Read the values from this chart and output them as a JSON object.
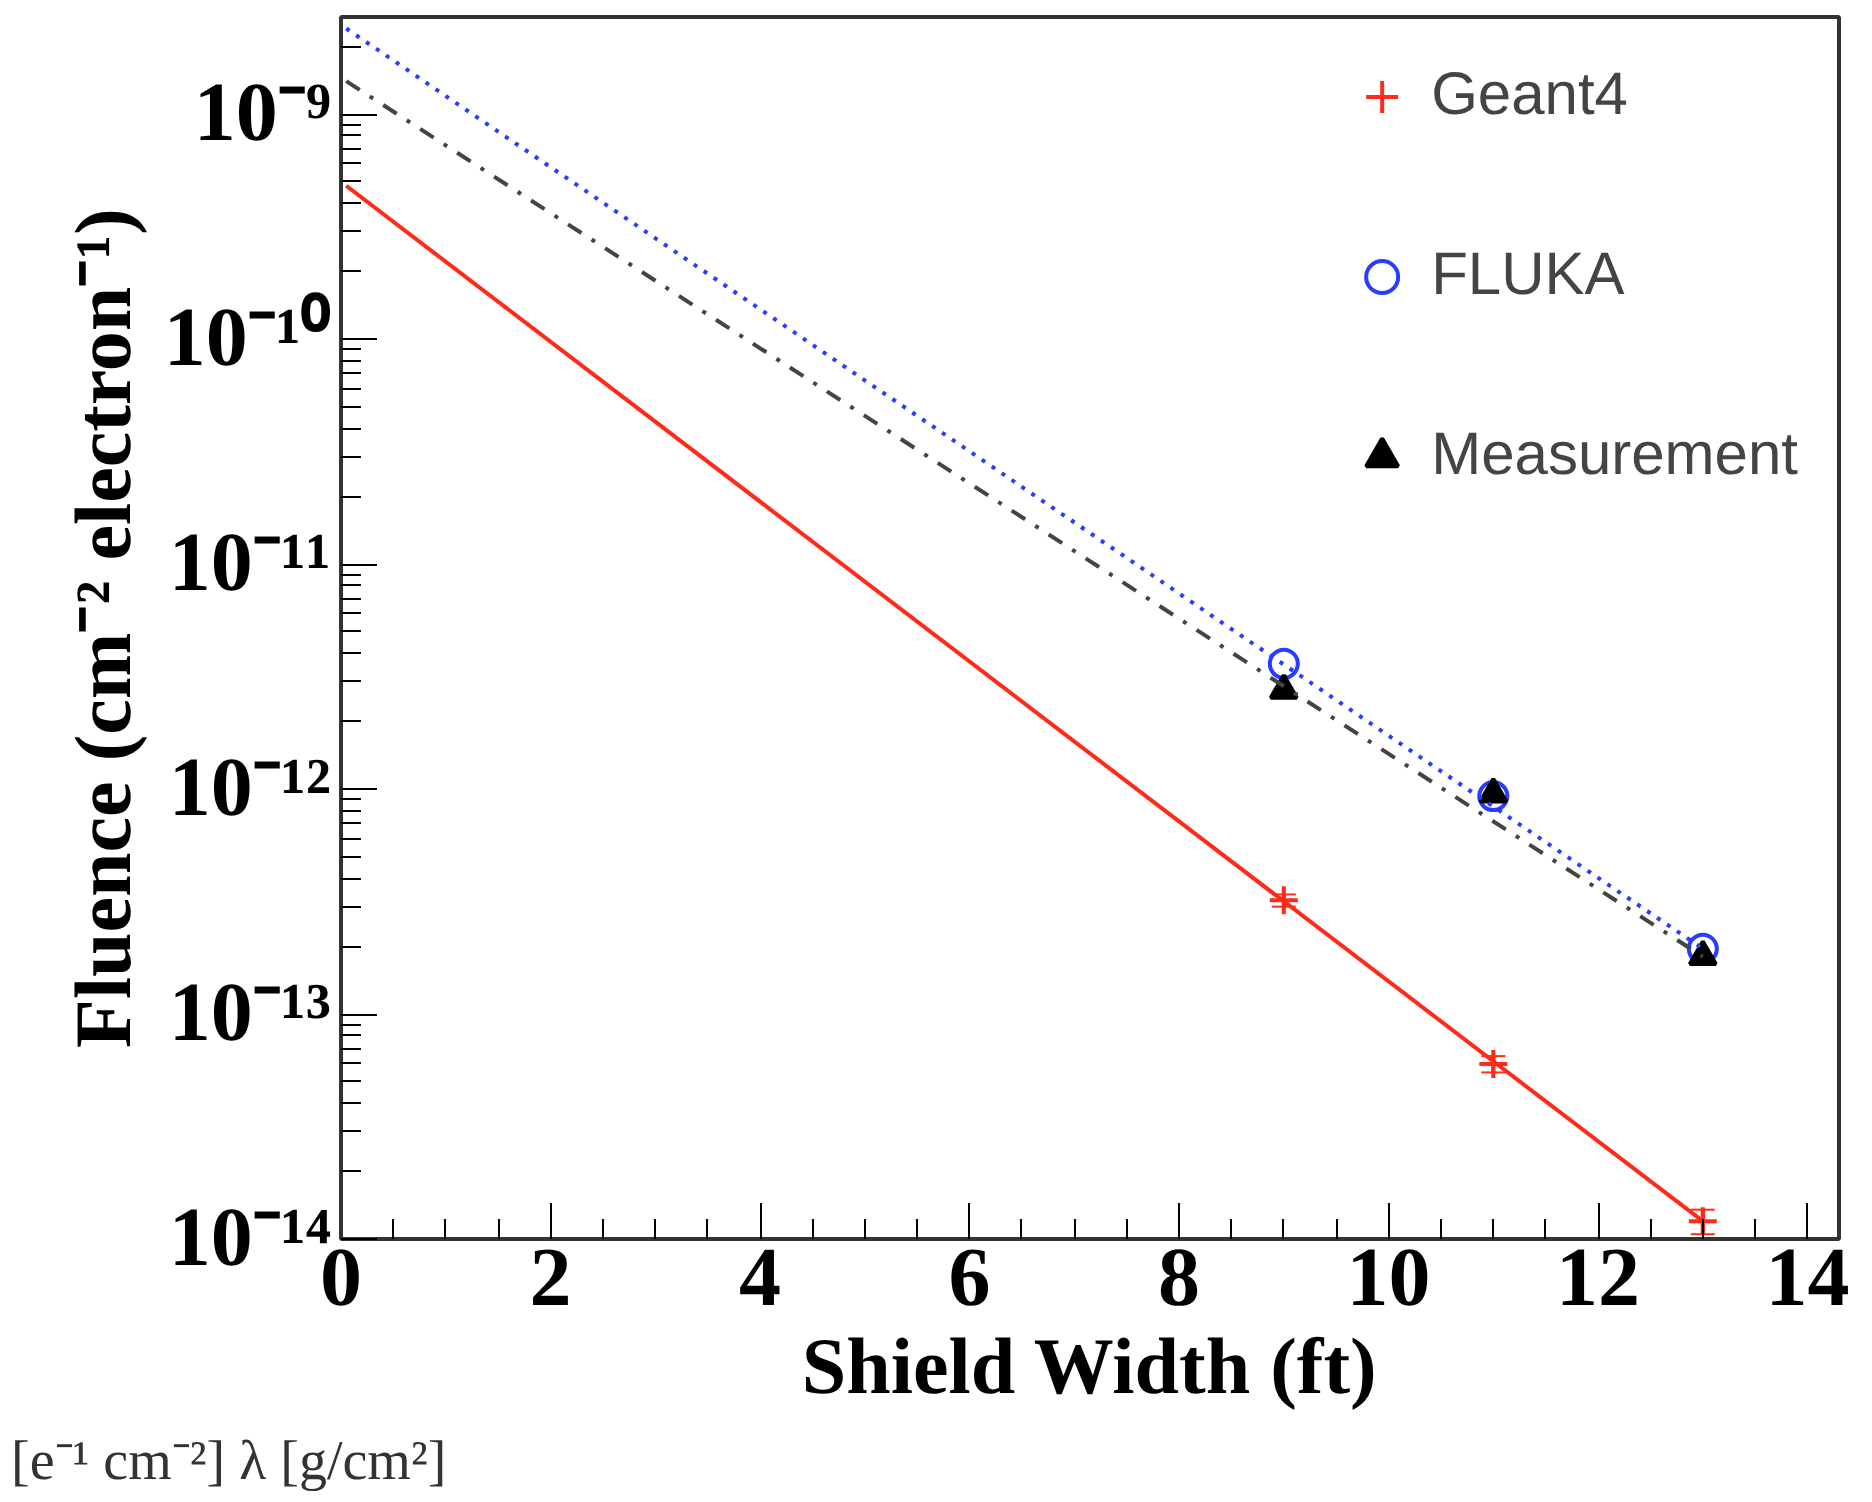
{
  "chart_data": {
    "type": "scatter",
    "xlabel": "Shield Width (ft)",
    "ylabel": "Fluence (cm⁻² electron⁻¹)",
    "log": "y",
    "grid": false,
    "legend": "top right",
    "xlim": [
      0,
      14.3
    ],
    "xticks": [
      0,
      2,
      4,
      6,
      8,
      10,
      12,
      14
    ],
    "ylim": [
      1e-14,
      2.7e-09
    ],
    "yticks": [
      {
        "value": 1e-14,
        "label": "10⁻¹⁴"
      },
      {
        "value": 1e-13,
        "label": "10⁻¹³"
      },
      {
        "value": 1e-12,
        "label": "10⁻¹²"
      },
      {
        "value": 1e-11,
        "label": "10⁻¹¹"
      },
      {
        "value": 1e-10,
        "label": "10⁻¹⁰"
      },
      {
        "value": 1e-09,
        "label": "10⁻⁹"
      }
    ],
    "series": [
      {
        "name": "Geant4",
        "type": "scatter",
        "marker": "cross",
        "color": "#ff2a1a",
        "x": [
          9,
          11,
          13
        ],
        "values": [
          3.2e-13,
          6e-14,
          1.2e-14
        ],
        "errors": [
          2e-14,
          5e-15,
          1.5e-15
        ]
      },
      {
        "name": "FLUKA",
        "type": "scatter",
        "marker": "circle",
        "color": "#2a3cff",
        "x": [
          9,
          11,
          13
        ],
        "values": [
          3.6e-12,
          9.3e-13,
          1.95e-13
        ]
      },
      {
        "name": "Measurement",
        "type": "scatter",
        "marker": "triangle",
        "color": "#000000",
        "x": [
          9,
          11,
          13
        ],
        "values": [
          2.75e-12,
          9.5e-13,
          1.8e-13
        ]
      },
      {
        "type": "line",
        "line_style": "solid",
        "marker": "none",
        "color": "#ff2a1a",
        "x": [
          0.05,
          13
        ],
        "values": [
          4.8e-10,
          1.2e-14
        ]
      },
      {
        "type": "line",
        "line_style": "dotted",
        "marker": "none",
        "color": "#2a3cff",
        "x": [
          0.05,
          13
        ],
        "values": [
          2.4e-09,
          1.95e-13
        ]
      },
      {
        "type": "line",
        "line_style": "dashed",
        "marker": "none",
        "color": "#444444",
        "x": [
          0.05,
          13
        ],
        "values": [
          1.4e-09,
          1.8e-13
        ]
      }
    ],
    "annotations": [
      "[e⁻¹ cm⁻²]      λ [g/cm²]"
    ]
  }
}
